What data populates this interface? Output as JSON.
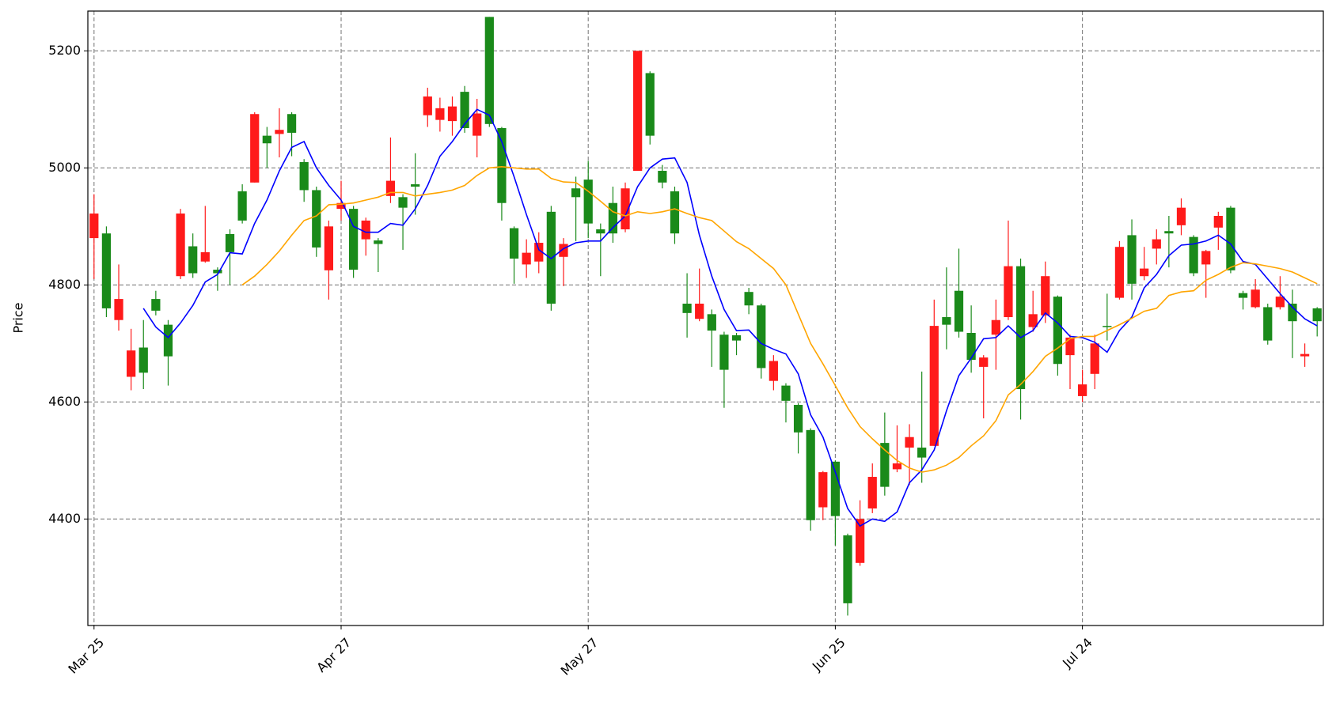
{
  "chart_data": {
    "type": "candlestick",
    "y_label": "Price",
    "categories": [
      "Mar 25",
      null,
      null,
      null,
      null,
      null,
      null,
      null,
      null,
      null,
      null,
      null,
      null,
      null,
      null,
      null,
      null,
      null,
      null,
      null,
      "Apr 27",
      null,
      null,
      null,
      null,
      null,
      null,
      null,
      null,
      null,
      null,
      null,
      null,
      null,
      null,
      null,
      null,
      null,
      null,
      null,
      "May 27",
      null,
      null,
      null,
      null,
      null,
      null,
      null,
      null,
      null,
      null,
      null,
      null,
      null,
      null,
      null,
      null,
      null,
      null,
      null,
      "Jun 25",
      null,
      null,
      null,
      null,
      null,
      null,
      null,
      null,
      null,
      null,
      null,
      null,
      null,
      null,
      null,
      null,
      null,
      null,
      null,
      "Jul 24",
      null,
      null,
      null,
      null,
      null,
      null,
      null,
      null,
      null,
      null,
      null,
      null,
      null,
      null,
      null,
      null,
      null,
      null,
      null
    ],
    "open": [
      4880,
      4888,
      4740,
      4643,
      4693,
      4776,
      4732,
      4815,
      4866,
      4840,
      4826,
      4887,
      4960,
      4975,
      5055,
      5058,
      5092,
      5010,
      4962,
      4825,
      4930,
      4930,
      4878,
      4876,
      4952,
      4950,
      4972,
      5090,
      5082,
      5080,
      5130,
      5055,
      5258,
      5068,
      4897,
      4835,
      4840,
      4925,
      4848,
      4965,
      4980,
      4895,
      4940,
      4895,
      4995,
      5162,
      4995,
      4960,
      4768,
      4742,
      4750,
      4715,
      4714,
      4788,
      4765,
      4636,
      4628,
      4595,
      4552,
      4420,
      4498,
      4372,
      4325,
      4418,
      4530,
      4485,
      4522,
      4522,
      4525,
      4745,
      4790,
      4718,
      4660,
      4715,
      4745,
      4832,
      4728,
      4748,
      4780,
      4680,
      4610,
      4648,
      4730,
      4778,
      4885,
      4815,
      4862,
      4892,
      4902,
      4882,
      4835,
      4898,
      4932,
      4786,
      4762,
      4762,
      4762,
      4768,
      4678,
      4760
    ],
    "high": [
      4955,
      4900,
      4835,
      4725,
      4740,
      4790,
      4740,
      4930,
      4888,
      4935,
      4830,
      4895,
      4972,
      5095,
      5070,
      5102,
      5095,
      5015,
      4968,
      4910,
      4978,
      4935,
      4915,
      4880,
      5052,
      4955,
      5025,
      5137,
      5120,
      5122,
      5140,
      5118,
      5258,
      5070,
      4900,
      4878,
      4890,
      4935,
      4880,
      4985,
      5012,
      4905,
      4968,
      4975,
      5200,
      5165,
      5005,
      4968,
      4820,
      4828,
      4758,
      4720,
      4718,
      4795,
      4768,
      4680,
      4632,
      4598,
      4555,
      4482,
      4500,
      4375,
      4432,
      4495,
      4582,
      4560,
      4562,
      4652,
      4775,
      4830,
      4862,
      4765,
      4680,
      4775,
      4910,
      4845,
      4790,
      4840,
      4782,
      4715,
      4655,
      4715,
      4785,
      4875,
      4912,
      4865,
      4895,
      4918,
      4948,
      4885,
      4860,
      4925,
      4935,
      4790,
      4810,
      4768,
      4815,
      4792,
      4700,
      4762
    ],
    "low": [
      4810,
      4745,
      4722,
      4620,
      4622,
      4748,
      4628,
      4810,
      4812,
      4838,
      4790,
      4800,
      4905,
      4975,
      5000,
      5018,
      5020,
      4942,
      4848,
      4775,
      4910,
      4812,
      4850,
      4822,
      4940,
      4860,
      4920,
      5070,
      5062,
      5055,
      5060,
      5018,
      5070,
      4910,
      4802,
      4812,
      4820,
      4756,
      4798,
      4875,
      4880,
      4815,
      4872,
      4890,
      4995,
      5040,
      4965,
      4870,
      4710,
      4738,
      4660,
      4590,
      4680,
      4750,
      4640,
      4620,
      4565,
      4512,
      4380,
      4398,
      4355,
      4235,
      4320,
      4410,
      4440,
      4480,
      4458,
      4462,
      4525,
      4690,
      4710,
      4650,
      4572,
      4655,
      4740,
      4570,
      4720,
      4735,
      4645,
      4622,
      4600,
      4622,
      4705,
      4775,
      4775,
      4808,
      4835,
      4830,
      4885,
      4815,
      4778,
      4860,
      4820,
      4758,
      4760,
      4698,
      4758,
      4675,
      4660,
      4712
    ],
    "close": [
      4922,
      4760,
      4776,
      4688,
      4650,
      4756,
      4678,
      4922,
      4820,
      4856,
      4820,
      4856,
      4910,
      5092,
      5042,
      5065,
      5060,
      4962,
      4864,
      4900,
      4940,
      4826,
      4910,
      4870,
      4978,
      4932,
      4968,
      5122,
      5102,
      5105,
      5068,
      5093,
      5075,
      4940,
      4845,
      4855,
      4872,
      4768,
      4870,
      4950,
      4905,
      4888,
      4888,
      4965,
      5200,
      5055,
      4975,
      4888,
      4752,
      4768,
      4722,
      4655,
      4705,
      4765,
      4658,
      4670,
      4602,
      4548,
      4398,
      4480,
      4405,
      4256,
      4400,
      4472,
      4455,
      4495,
      4540,
      4505,
      4730,
      4732,
      4720,
      4672,
      4676,
      4740,
      4832,
      4622,
      4750,
      4815,
      4665,
      4710,
      4630,
      4700,
      4728,
      4865,
      4802,
      4828,
      4878,
      4888,
      4932,
      4820,
      4858,
      4918,
      4825,
      4778,
      4792,
      4705,
      4780,
      4738,
      4682,
      4738
    ],
    "up_color": "#ff1a1a",
    "down_color": "#1a8a1a",
    "lines": [
      {
        "color": "blue",
        "values": [
          null,
          null,
          null,
          null,
          4760,
          4728,
          4710,
          4735,
          4765,
          4805,
          4818,
          4855,
          4853,
          4905,
          4945,
          4995,
          5035,
          5045,
          5000,
          4970,
          4945,
          4900,
          4890,
          4890,
          4905,
          4902,
          4930,
          4970,
          5020,
          5045,
          5075,
          5100,
          5090,
          5045,
          4985,
          4920,
          4860,
          4845,
          4862,
          4872,
          4875,
          4875,
          4898,
          4918,
          4968,
          5000,
          5015,
          5017,
          4975,
          4885,
          4815,
          4758,
          4722,
          4723,
          4700,
          4690,
          4682,
          4648,
          4578,
          4540,
          4480,
          4418,
          4388,
          4400,
          4396,
          4412,
          4462,
          4484,
          4518,
          4585,
          4645,
          4675,
          4708,
          4710,
          4730,
          4710,
          4722,
          4752,
          4735,
          4712,
          4710,
          4702,
          4685,
          4722,
          4745,
          4795,
          4818,
          4850,
          4868,
          4870,
          4875,
          4885,
          4870,
          4840,
          4835,
          4810,
          4785,
          4762,
          4742,
          4730
        ]
      },
      {
        "color": "orange",
        "values": [
          null,
          null,
          null,
          null,
          null,
          null,
          null,
          null,
          null,
          null,
          null,
          null,
          4800,
          4815,
          4835,
          4858,
          4885,
          4910,
          4918,
          4937,
          4938,
          4940,
          4945,
          4950,
          4958,
          4958,
          4952,
          4955,
          4958,
          4962,
          4970,
          4987,
          5000,
          5002,
          5000,
          4998,
          4998,
          4982,
          4976,
          4975,
          4960,
          4943,
          4925,
          4918,
          4925,
          4922,
          4925,
          4930,
          4922,
          4915,
          4910,
          4892,
          4874,
          4862,
          4845,
          4828,
          4800,
          4750,
          4700,
          4665,
          4628,
          4590,
          4558,
          4537,
          4518,
          4500,
          4487,
          4480,
          4484,
          4492,
          4505,
          4525,
          4542,
          4568,
          4612,
          4630,
          4652,
          4678,
          4692,
          4708,
          4712,
          4712,
          4722,
          4732,
          4743,
          4755,
          4760,
          4782,
          4788,
          4790,
          4808,
          4818,
          4830,
          4838,
          4836,
          4832,
          4828,
          4822,
          4812,
          4802
        ]
      }
    ],
    "xlim": [
      -0.5,
      99.5
    ],
    "ylim": [
      4218,
      5268
    ],
    "yticks": [
      4400,
      4600,
      4800,
      5000,
      5200
    ],
    "grid": true
  }
}
